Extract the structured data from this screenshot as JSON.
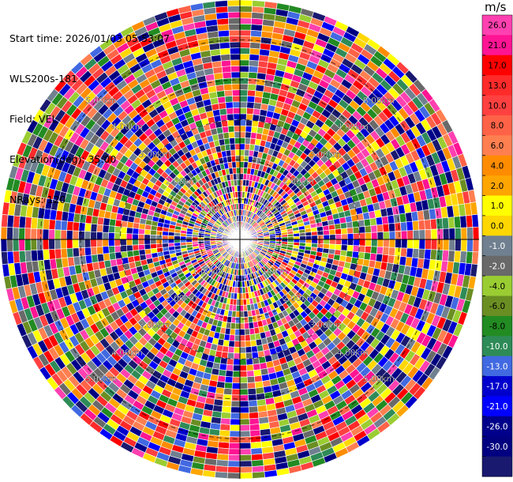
{
  "info": {
    "start_time": "Start time: 2026/01/03 05:53:07",
    "instrument": "WLS200s-181",
    "field": "Field: VEL",
    "elevation": "Elevation(deg): 35.00",
    "nrays": "NRays: 120"
  },
  "rings": [
    "1.00km",
    "2.00km",
    "3.00km",
    "4.00km",
    "5.00km"
  ],
  "colorbar": {
    "unit": "m/s",
    "tick_labels": [
      "26.0",
      "21.0",
      "17.0",
      "13.0",
      "10.0",
      "8.0",
      "6.0",
      "4.0",
      "2.0",
      "1.0",
      "0.0",
      "-1.0",
      "-2.0",
      "-4.0",
      "-6.0",
      "-8.0",
      "-10.0",
      "-13.0",
      "-17.0",
      "-21.0",
      "-26.0",
      "-30.0"
    ],
    "colors": [
      "#ff40b0",
      "#ff1493",
      "#ff0000",
      "#ff2a2a",
      "#ff4040",
      "#ff6347",
      "#ff7f50",
      "#ff8c00",
      "#ffa500",
      "#ffff00",
      "#ffd700",
      "#708090",
      "#696969",
      "#9acd32",
      "#6b8e23",
      "#228b22",
      "#2e8b57",
      "#4169e1",
      "#0000cd",
      "#0000ff",
      "#00008b",
      "#000080",
      "#191970"
    ]
  }
}
